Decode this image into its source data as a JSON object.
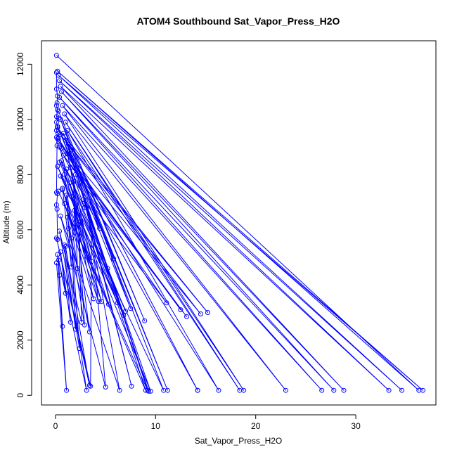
{
  "chart_data": {
    "type": "line",
    "title": "ATOM4 Southbound Sat_Vapor_Press_H2O",
    "xlabel": "Sat_Vapor_Press_H2O",
    "ylabel": "Altitude (m)",
    "xlim": [
      -1.4,
      38.0
    ],
    "ylim": [
      -350,
      12850
    ],
    "xticks": [
      0,
      10,
      20,
      30
    ],
    "yticks": [
      0,
      2000,
      4000,
      6000,
      8000,
      10000,
      12000
    ],
    "grid": false,
    "legend": "none",
    "colors": {
      "series": "#0000ff",
      "axes": "#000000",
      "background": "#ffffff"
    },
    "series": [
      {
        "x": [
          0.1,
          36.3,
          0.2,
          36.7,
          0.3,
          34.6,
          0.4,
          33.3,
          0.5,
          28.8,
          0.6,
          27.8,
          0.4,
          26.6,
          0.7,
          23.0,
          0.9,
          18.8,
          1.0,
          18.4,
          1.2,
          16.3,
          0.3,
          14.2,
          1.3,
          14.2,
          1.6,
          11.2,
          1.8,
          10.8,
          0.2,
          9.5,
          2.0,
          9.3,
          2.4,
          9.2,
          0.3,
          9.0,
          2.8,
          7.6,
          3.1,
          6.4,
          0.5,
          5.0,
          3.6,
          3.5,
          0.1,
          3.4,
          1.0,
          3.1,
          0.2,
          1.1,
          0.1
        ],
        "y": [
          12320,
          180,
          11750,
          180,
          11600,
          180,
          11400,
          180,
          11200,
          180,
          11000,
          180,
          10800,
          180,
          10500,
          180,
          10200,
          180,
          9900,
          180,
          9600,
          180,
          9300,
          180,
          9100,
          180,
          8900,
          180,
          8600,
          180,
          8300,
          150,
          8000,
          150,
          7700,
          180,
          7400,
          180,
          7100,
          330,
          6800,
          180,
          6500,
          300,
          6100,
          330,
          5700,
          360,
          5400,
          180,
          5100,
          180,
          4800
        ]
      },
      {
        "x": [
          0.2,
          15.2,
          0.5,
          14.5,
          0.3,
          12.5,
          0.6,
          13.1,
          0.8,
          11.1,
          0.4,
          7.0,
          1.1,
          6.8,
          0.5,
          6.2,
          1.4,
          5.3,
          0.7,
          4.6,
          1.6,
          4.3,
          0.9,
          3.8,
          1.9,
          3.4,
          1.2,
          2.9,
          2.3,
          2.6,
          0.4,
          2.4,
          1.6,
          2.0,
          0.9,
          1.5,
          0.5,
          1.0,
          0.3,
          0.4,
          0.7
        ],
        "y": [
          9700,
          3000,
          9450,
          2950,
          9200,
          3100,
          8950,
          2850,
          8700,
          3350,
          8450,
          3050,
          8200,
          2900,
          7950,
          3350,
          7700,
          3300,
          7450,
          3400,
          7200,
          3400,
          6950,
          3500,
          6700,
          2300,
          6450,
          2550,
          6200,
          2650,
          5950,
          1700,
          5700,
          2400,
          5450,
          2650,
          5200,
          3700,
          4900,
          4350,
          2500
        ]
      },
      {
        "x": [
          0.3,
          8.9,
          0.5,
          7.5,
          0.2,
          5.8,
          0.8,
          5.2,
          1.0,
          4.4,
          0.4,
          3.6,
          1.2,
          3.2,
          0.6,
          2.9,
          1.5,
          2.5,
          0.9,
          2.2,
          1.8,
          1.9,
          0.7,
          1.6,
          1.1,
          1.3
        ],
        "y": [
          10300,
          2700,
          10000,
          3150,
          9750,
          4950,
          9500,
          4600,
          9250,
          6050,
          9000,
          4850,
          8750,
          5000,
          8500,
          6800,
          8250,
          6300,
          8000,
          4600,
          7750,
          5900,
          7500,
          4650,
          7250,
          6050
        ]
      },
      {
        "x": [
          0.1,
          0.1,
          0.2,
          0.15,
          0.1,
          0.2,
          0.1,
          0.3,
          0.1,
          0.2,
          0.1,
          0.25,
          0.1,
          0.2,
          0.15,
          0.1,
          0.2,
          0.1,
          0.15,
          0.2
        ],
        "y": [
          11700,
          11100,
          10850,
          10600,
          10500,
          10350,
          10100,
          10050,
          9900,
          9750,
          9600,
          9500,
          9350,
          9300,
          9050,
          7350,
          7300,
          6900,
          6750,
          5650
        ]
      }
    ]
  }
}
